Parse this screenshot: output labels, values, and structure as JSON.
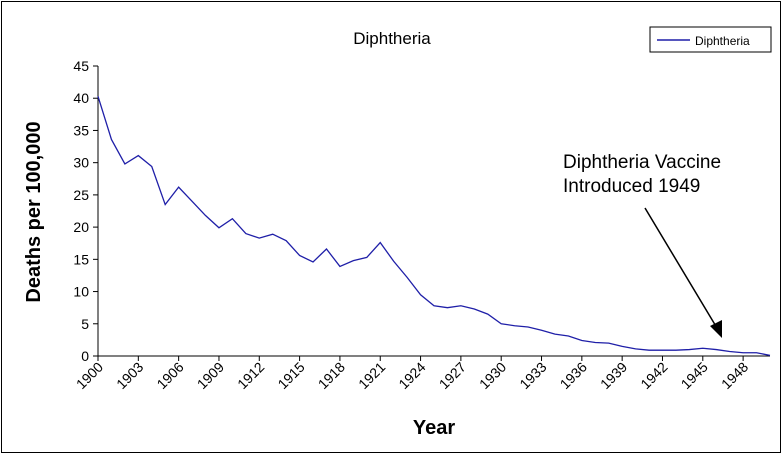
{
  "chart_data": {
    "type": "line",
    "title": "Diphtheria",
    "xlabel": "Year",
    "ylabel": "Deaths per 100,000",
    "ylim": [
      0,
      45
    ],
    "xlim": [
      1900,
      1950
    ],
    "y_ticks": [
      "0",
      "5",
      "10",
      "15",
      "20",
      "25",
      "30",
      "35",
      "40",
      "45"
    ],
    "x_ticks": [
      "1900",
      "1903",
      "1906",
      "1909",
      "1912",
      "1915",
      "1918",
      "1921",
      "1924",
      "1927",
      "1930",
      "1933",
      "1936",
      "1939",
      "1942",
      "1945",
      "1948"
    ],
    "legend": {
      "position": "top-right",
      "entries": [
        "Diphtheria"
      ]
    },
    "grid": false,
    "series": [
      {
        "name": "Diphtheria",
        "color": "#1f1fa8",
        "x": [
          1900,
          1901,
          1902,
          1903,
          1904,
          1905,
          1906,
          1907,
          1908,
          1909,
          1910,
          1911,
          1912,
          1913,
          1914,
          1915,
          1916,
          1917,
          1918,
          1919,
          1920,
          1921,
          1922,
          1923,
          1924,
          1925,
          1926,
          1927,
          1928,
          1929,
          1930,
          1931,
          1932,
          1933,
          1934,
          1935,
          1936,
          1937,
          1938,
          1939,
          1940,
          1941,
          1942,
          1943,
          1944,
          1945,
          1946,
          1947,
          1948,
          1949,
          1950
        ],
        "values": [
          40.3,
          33.6,
          29.8,
          31.1,
          29.4,
          23.5,
          26.2,
          24.0,
          21.8,
          19.9,
          21.3,
          19.0,
          18.3,
          18.9,
          17.9,
          15.6,
          14.6,
          16.6,
          13.9,
          14.8,
          15.3,
          17.6,
          14.7,
          12.2,
          9.5,
          7.8,
          7.5,
          7.8,
          7.3,
          6.5,
          5.0,
          4.7,
          4.5,
          4.0,
          3.4,
          3.1,
          2.4,
          2.1,
          2.0,
          1.5,
          1.1,
          0.9,
          0.9,
          0.9,
          1.0,
          1.2,
          1.0,
          0.7,
          0.5,
          0.5,
          0.1
        ]
      }
    ],
    "annotation": {
      "lines": [
        "Diphtheria Vaccine",
        "Introduced 1949"
      ],
      "arrow_to_year": 1949
    }
  }
}
